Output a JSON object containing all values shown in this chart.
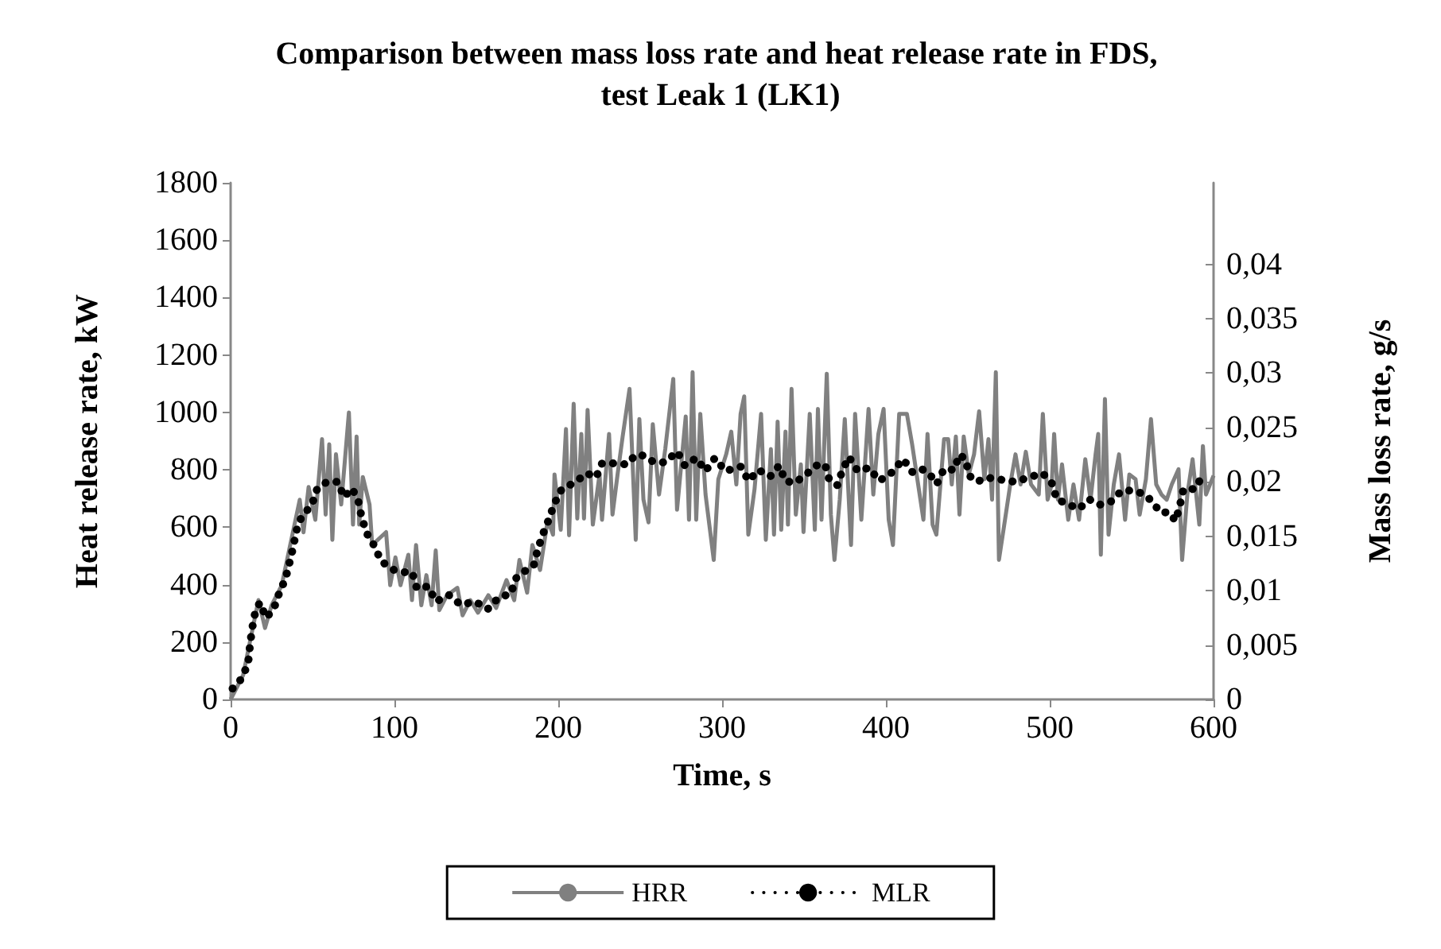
{
  "chart_data": {
    "type": "line",
    "title": "Comparison between mass loss rate and heat release rate in FDS, test Leak 1 (LK1)",
    "xlabel": "Time, s",
    "ylabel": "Heat release rate, kW",
    "y2label": "Mass loss rate, g/s",
    "xlim": [
      0,
      600
    ],
    "xticks": [
      0,
      100,
      200,
      300,
      400,
      500,
      600
    ],
    "ylim": [
      0,
      1800
    ],
    "yticks": [
      0,
      200,
      400,
      600,
      800,
      1000,
      1200,
      1400,
      1600,
      1800
    ],
    "y2lim": [
      0,
      0.0475
    ],
    "y2ticks": [
      0,
      {
        "value": 0.005,
        "label": "0,005"
      },
      {
        "value": 0.01,
        "label": "0,01"
      },
      {
        "value": 0.015,
        "label": "0,015"
      },
      {
        "value": 0.02,
        "label": "0,02"
      },
      {
        "value": 0.025,
        "label": "0,025"
      },
      {
        "value": 0.03,
        "label": "0,03"
      },
      {
        "value": 0.035,
        "label": "0,035"
      },
      {
        "value": 0.04,
        "label": "0,04"
      }
    ],
    "legend": "bottom",
    "marker": "none",
    "series": [
      {
        "name": "HRR",
        "color": "#808080",
        "line_style": "solid",
        "x": [
          0,
          7.6,
          17,
          21,
          25,
          31.2,
          42.2,
          44.5,
          47.6,
          51.7,
          55.8,
          58,
          60.2,
          62.1,
          64.3,
          67.5,
          72.2,
          74.7,
          76.9,
          78.5,
          80.7,
          84.8,
          86.4,
          94.9,
          97.4,
          100.6,
          103.7,
          108.5,
          110.7,
          113.2,
          116.4,
          119.5,
          122.7,
          125.2,
          127.4,
          132.1,
          138.4,
          141.6,
          146.3,
          151,
          157.3,
          162.1,
          168.4,
          173.1,
          176.3,
          181,
          184.2,
          188.9,
          193.6,
          196.8,
          197.7,
          201.5,
          204.7,
          206.6,
          209.4,
          211.6,
          214.1,
          215.7,
          217.9,
          221.1,
          225.2,
          226.7,
          231,
          233.1,
          236.2,
          239.3,
          243.5,
          247.3,
          249.5,
          252,
          255.1,
          257.7,
          261.5,
          265.3,
          270.2,
          272.5,
          277.8,
          279.8,
          282,
          284.2,
          286.7,
          289.9,
          294.9,
          297.7,
          302.5,
          305.6,
          308.7,
          311.3,
          313.5,
          316,
          319.8,
          323.8,
          326.7,
          329.8,
          331.7,
          333.9,
          336.1,
          338.7,
          340.2,
          342.4,
          345,
          348.1,
          349.7,
          353.5,
          356.6,
          358.5,
          360.7,
          363.9,
          366.4,
          368.6,
          371.8,
          374.9,
          378.7,
          381.2,
          385,
          389.4,
          392.3,
          395.4,
          398.6,
          401.7,
          404.3,
          408.1,
          412.8,
          416,
          422.9,
          425.4,
          428.5,
          430.8,
          435.5,
          438,
          440.2,
          442.7,
          444.9,
          447.5,
          450.6,
          453.8,
          456.9,
          460.1,
          462.6,
          464.8,
          467.1,
          469,
          472.7,
          475.9,
          479.1,
          482.2,
          485.4,
          488.6,
          493.3,
          495.8,
          498.7,
          501.2,
          502.7,
          505,
          507.5,
          511.3,
          514.5,
          517.9,
          521.7,
          524.9,
          528,
          529.6,
          531.2,
          533.7,
          535.9,
          539.1,
          542.3,
          546,
          548.6,
          552.4,
          554.9,
          558.7,
          561.8,
          565,
          568.2,
          571.4,
          574.5,
          578.6,
          580.8,
          584,
          587.2,
          591.3,
          593.5,
          595.4,
          600
        ],
        "values": [
          0,
          84,
          346,
          249,
          328,
          398,
          696,
          582,
          740,
          626,
          907,
          644,
          889,
          556,
          854,
          679,
          1000,
          609,
          916,
          609,
          775,
          679,
          538,
          583,
          398,
          495,
          398,
          504,
          346,
          538,
          328,
          433,
          328,
          519,
          311,
          363,
          389,
          293,
          346,
          302,
          363,
          319,
          416,
          346,
          486,
          372,
          538,
          451,
          626,
          574,
          784,
          591,
          942,
          572,
          1030,
          630,
          925,
          630,
          1009,
          609,
          784,
          626,
          925,
          644,
          784,
          916,
          1082,
          556,
          977,
          696,
          617,
          959,
          714,
          872,
          1117,
          661,
          986,
          626,
          1140,
          626,
          995,
          714,
          486,
          767,
          854,
          933,
          749,
          995,
          1056,
          574,
          732,
          995,
          556,
          872,
          574,
          968,
          591,
          933,
          609,
          1082,
          644,
          819,
          583,
          995,
          591,
          1012,
          626,
          1135,
          644,
          486,
          696,
          977,
          538,
          995,
          626,
          1012,
          714,
          925,
          1012,
          626,
          538,
          995,
          995,
          889,
          626,
          925,
          609,
          574,
          907,
          907,
          749,
          916,
          644,
          916,
          784,
          854,
          1004,
          767,
          907,
          696,
          1140,
          486,
          626,
          749,
          854,
          749,
          863,
          749,
          714,
          995,
          696,
          749,
          925,
          696,
          819,
          626,
          749,
          626,
          837,
          696,
          854,
          925,
          504,
          1047,
          574,
          749,
          854,
          626,
          784,
          767,
          644,
          767,
          977,
          749,
          714,
          696,
          749,
          802,
          486,
          714,
          837,
          609,
          883,
          714,
          780
        ]
      },
      {
        "name": "MLR",
        "color": "#000000",
        "line_style": "dotted",
        "axis": "y2",
        "x": [
          1.2,
          6.6,
          10.7,
          11.7,
          12.9,
          14.5,
          17.7,
          21.8,
          26.5,
          29.7,
          33.5,
          36,
          38.2,
          40.1,
          43.3,
          49.6,
          52.7,
          58.7,
          65.7,
          69.1,
          74.2,
          78,
          79.9,
          83,
          87.8,
          91.9,
          99.8,
          105.5,
          110.8,
          113.7,
          120.6,
          125.4,
          133.2,
          140.5,
          149.3,
          156.9,
          163.8,
          171.1,
          173.9,
          179.6,
          185,
          187.5,
          190.6,
          194.4,
          197.6,
          202,
          210.5,
          217.5,
          223,
          226.7,
          235.3,
          241.9,
          247.3,
          252.7,
          258.4,
          265.3,
          272.6,
          277.3,
          284.3,
          289.9,
          295.6,
          302,
          311.4,
          316.2,
          322.2,
          329.4,
          334.8,
          338.6,
          344.3,
          351.5,
          357.2,
          362.9,
          365.4,
          370.4,
          373.3,
          377.4,
          382.8,
          389.7,
          396,
          403.9,
          410.5,
          416.2,
          421.6,
          426.3,
          431,
          435.5,
          441.8,
          444.7,
          448.7,
          450.7,
          455.4,
          461.7,
          470.5,
          479,
          486.9,
          495.7,
          501.7,
          504.2,
          510.6,
          517.8,
          524.1,
          530.4,
          537.4,
          544,
          551,
          557.3,
          562.6,
          567.4,
          573,
          576.8,
          579.4,
          581.6,
          586.3,
          590.1,
          593.3
        ],
        "values": [
          0.001,
          0.0019,
          0.0033,
          0.0048,
          0.0063,
          0.0077,
          0.0089,
          0.0075,
          0.0084,
          0.0098,
          0.0111,
          0.0126,
          0.014,
          0.0155,
          0.0168,
          0.0179,
          0.0193,
          0.02,
          0.02,
          0.0186,
          0.0194,
          0.0182,
          0.0168,
          0.0153,
          0.0141,
          0.0127,
          0.0119,
          0.0117,
          0.0117,
          0.0102,
          0.0104,
          0.009,
          0.0096,
          0.0087,
          0.009,
          0.0083,
          0.0094,
          0.0097,
          0.0111,
          0.0118,
          0.0123,
          0.0138,
          0.0152,
          0.0166,
          0.018,
          0.0193,
          0.02,
          0.0208,
          0.0204,
          0.0217,
          0.0217,
          0.0216,
          0.0225,
          0.0224,
          0.0218,
          0.0218,
          0.0228,
          0.0215,
          0.0222,
          0.021,
          0.0222,
          0.021,
          0.0214,
          0.0201,
          0.0211,
          0.0205,
          0.0215,
          0.0201,
          0.0199,
          0.0207,
          0.0215,
          0.0216,
          0.0202,
          0.0197,
          0.021,
          0.0223,
          0.021,
          0.0213,
          0.0201,
          0.0209,
          0.0221,
          0.0209,
          0.0212,
          0.0208,
          0.0198,
          0.0212,
          0.0211,
          0.0225,
          0.0221,
          0.0206,
          0.02,
          0.0204,
          0.0202,
          0.02,
          0.0204,
          0.0208,
          0.0198,
          0.0184,
          0.018,
          0.0175,
          0.0184,
          0.0179,
          0.0182,
          0.0192,
          0.0192,
          0.0189,
          0.0182,
          0.0172,
          0.0172,
          0.0164,
          0.0178,
          0.0193,
          0.0193,
          0.0195,
          0.021
        ]
      }
    ]
  }
}
